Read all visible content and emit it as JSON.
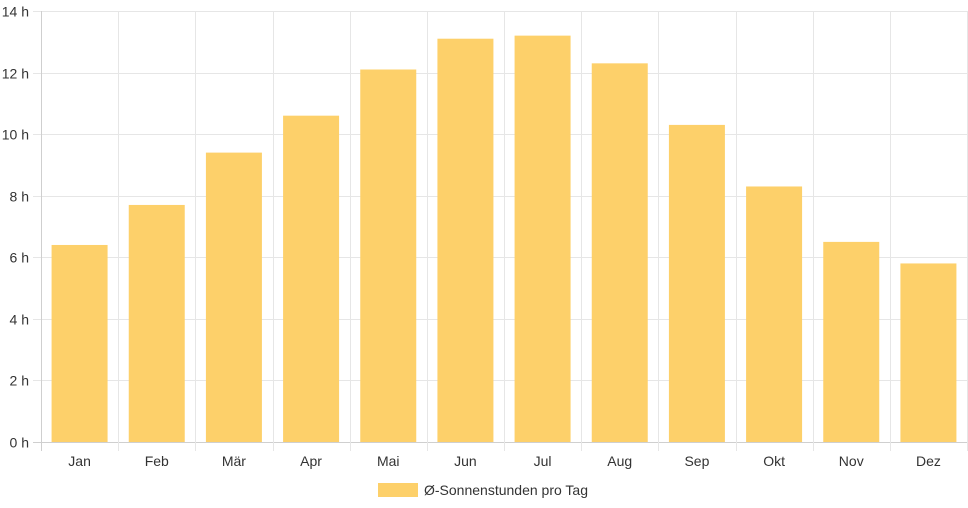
{
  "chart_data": {
    "type": "bar",
    "categories": [
      "Jan",
      "Feb",
      "Mär",
      "Apr",
      "Mai",
      "Jun",
      "Jul",
      "Aug",
      "Sep",
      "Okt",
      "Nov",
      "Dez"
    ],
    "series": [
      {
        "name": "Ø-Sonnenstunden pro Tag",
        "values": [
          6.4,
          7.7,
          9.4,
          10.6,
          12.1,
          13.1,
          13.2,
          12.3,
          10.3,
          8.3,
          6.5,
          5.8
        ],
        "color": "#FDD06A"
      }
    ],
    "ylim": [
      0,
      14
    ],
    "yticks": [
      0,
      2,
      4,
      6,
      8,
      10,
      12,
      14
    ],
    "ytick_labels": [
      "0 h",
      "2 h",
      "4 h",
      "6 h",
      "8 h",
      "10 h",
      "12 h",
      "14 h"
    ],
    "grid": true,
    "legend_position": "bottom",
    "xlabel": "",
    "ylabel": "",
    "title": ""
  }
}
